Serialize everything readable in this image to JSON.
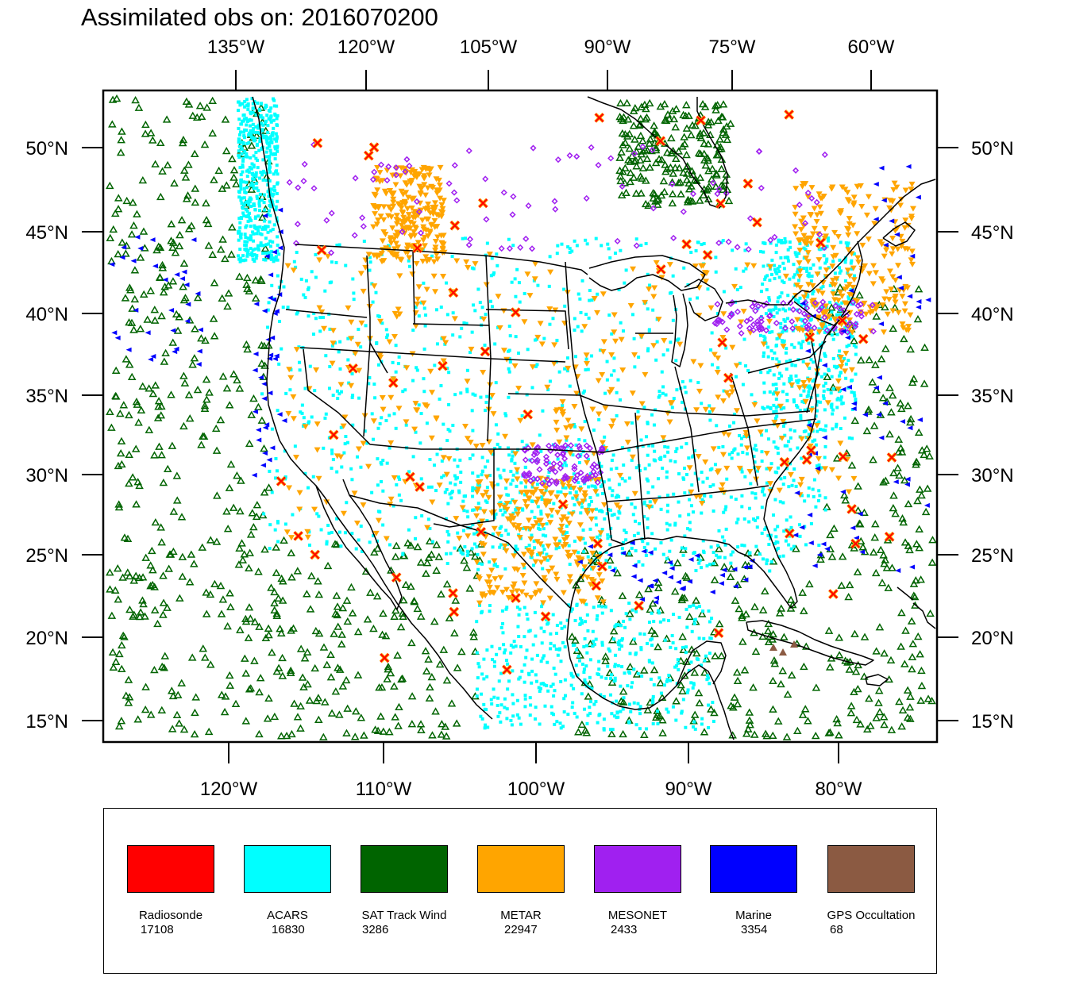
{
  "title": "Assimilated obs on: 2016070200",
  "map": {
    "top_axis_labels": [
      "135°W",
      "120°W",
      "105°W",
      "90°W",
      "75°W",
      "60°W"
    ],
    "bottom_axis_labels": [
      "120°W",
      "110°W",
      "100°W",
      "90°W",
      "80°W"
    ],
    "left_axis_labels": [
      "50°N",
      "45°N",
      "40°N",
      "35°N",
      "30°N",
      "25°N",
      "20°N",
      "15°N"
    ],
    "right_axis_labels": [
      "50°N",
      "45°N",
      "40°N",
      "35°N",
      "30°N",
      "25°N",
      "20°N",
      "15°N"
    ],
    "coastline_color": "#000000"
  },
  "legend": {
    "items": [
      {
        "label": "Radiosonde",
        "count": "17108",
        "color": "#FF0000",
        "marker": "x-cross"
      },
      {
        "label": "ACARS",
        "count": "16830",
        "color": "#00FFFF",
        "marker": "square-dot"
      },
      {
        "label": "SAT Track Wind",
        "count": "3286",
        "color": "#006400",
        "marker": "open-triangle-up"
      },
      {
        "label": "METAR",
        "count": "22947",
        "color": "#FFA500",
        "marker": "filled-triangle-down"
      },
      {
        "label": "MESONET",
        "count": "2433",
        "color": "#A020F0",
        "marker": "open-diamond"
      },
      {
        "label": "Marine",
        "count": "3354",
        "color": "#0000FF",
        "marker": "filled-triangle-left"
      },
      {
        "label": "GPS Occultation",
        "count": "68",
        "color": "#8B5A42",
        "marker": "filled-triangle-up"
      }
    ]
  }
}
